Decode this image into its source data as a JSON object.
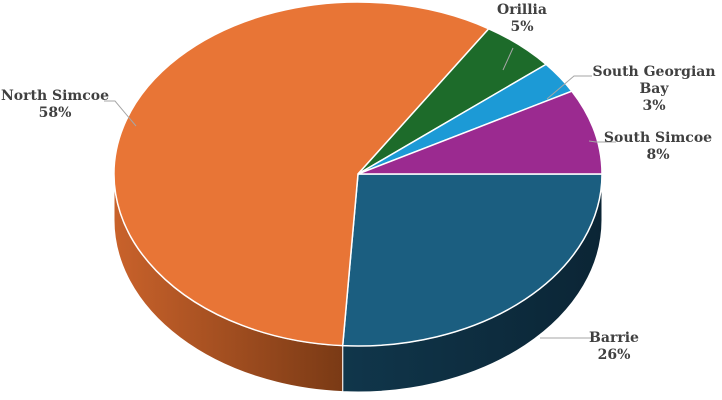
{
  "chart_data": {
    "type": "pie",
    "style": "3d",
    "title": "",
    "slices": [
      {
        "label": "Barrie",
        "value": 26,
        "value_label": "26%",
        "color": "#1b5e80"
      },
      {
        "label": "North Simcoe",
        "value": 58,
        "value_label": "58%",
        "color": "#e87536"
      },
      {
        "label": "Orillia",
        "value": 5,
        "value_label": "5%",
        "color": "#1d6b2a"
      },
      {
        "label": "South Georgian Bay",
        "label_lines": [
          "South Georgian",
          "Bay"
        ],
        "value": 3,
        "value_label": "3%",
        "color": "#1c9ad6"
      },
      {
        "label": "South Simcoe",
        "value": 8,
        "value_label": "8%",
        "color": "#9b2a90"
      }
    ],
    "legend": "none",
    "data_labels": "outside with leader lines"
  }
}
